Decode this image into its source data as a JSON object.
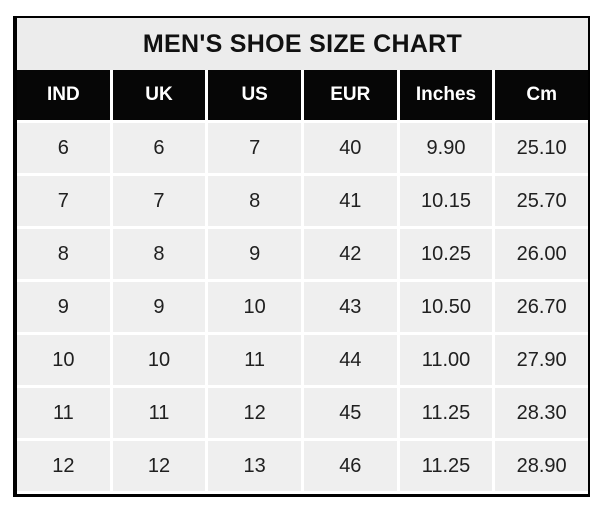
{
  "title": "MEN'S SHOE SIZE CHART",
  "table": {
    "headers": [
      "IND",
      "UK",
      "US",
      "EUR",
      "Inches",
      "Cm"
    ],
    "rows": [
      [
        "6",
        "6",
        "7",
        "40",
        "9.90",
        "25.10"
      ],
      [
        "7",
        "7",
        "8",
        "41",
        "10.15",
        "25.70"
      ],
      [
        "8",
        "8",
        "9",
        "42",
        "10.25",
        "26.00"
      ],
      [
        "9",
        "9",
        "10",
        "43",
        "10.50",
        "26.70"
      ],
      [
        "10",
        "10",
        "11",
        "44",
        "11.00",
        "27.90"
      ],
      [
        "11",
        "11",
        "12",
        "45",
        "11.25",
        "28.30"
      ],
      [
        "12",
        "12",
        "13",
        "46",
        "11.25",
        "28.90"
      ]
    ]
  },
  "colors": {
    "header_bg": "#060606",
    "header_text": "#ffffff",
    "title_bg": "#ececec",
    "cell_bg": "#efefef",
    "body_text": "#202020",
    "border": "#000000",
    "gap": "#ffffff"
  },
  "chart_data": {
    "type": "table",
    "title": "MEN'S SHOE SIZE CHART",
    "columns": [
      "IND",
      "UK",
      "US",
      "EUR",
      "Inches",
      "Cm"
    ],
    "rows": [
      [
        6,
        6,
        7,
        40,
        9.9,
        25.1
      ],
      [
        7,
        7,
        8,
        41,
        10.15,
        25.7
      ],
      [
        8,
        8,
        9,
        42,
        10.25,
        26.0
      ],
      [
        9,
        9,
        10,
        43,
        10.5,
        26.7
      ],
      [
        10,
        10,
        11,
        44,
        11.0,
        27.9
      ],
      [
        11,
        11,
        12,
        45,
        11.25,
        28.3
      ],
      [
        12,
        12,
        13,
        46,
        11.25,
        28.9
      ]
    ]
  }
}
